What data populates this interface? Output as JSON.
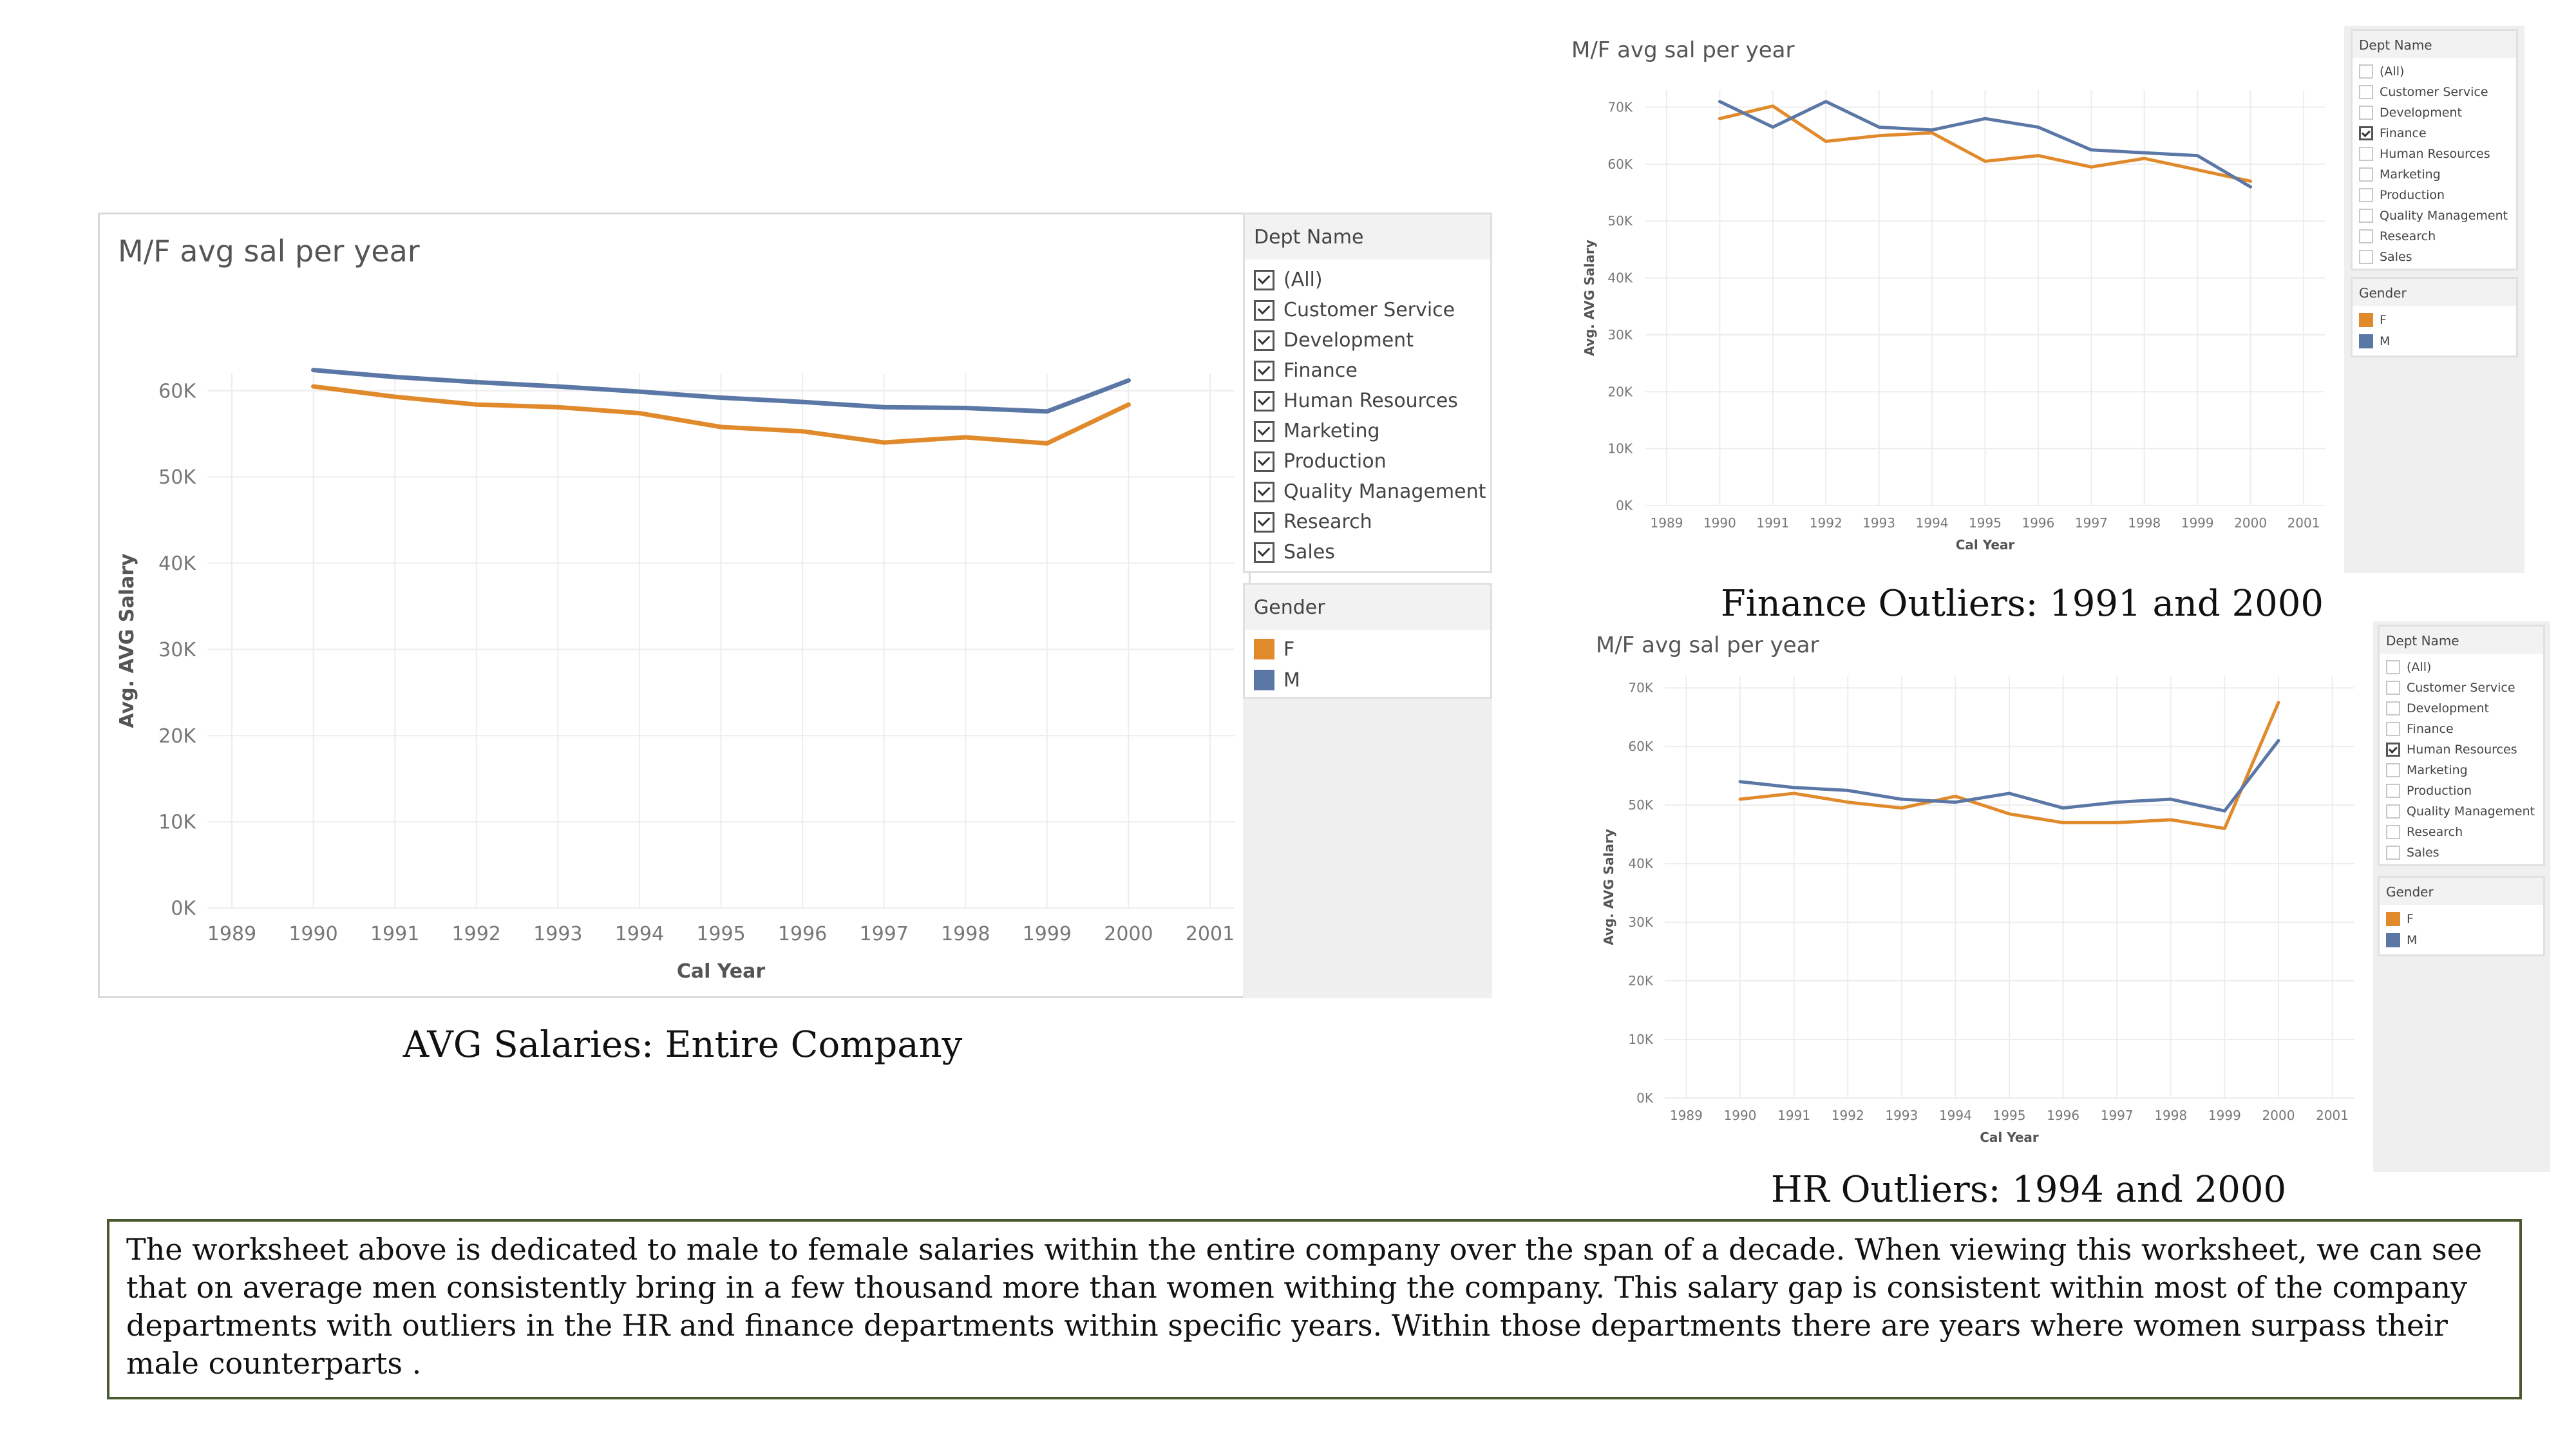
{
  "colors": {
    "female": "#e08a2c",
    "male": "#5b77a6",
    "grid": "#ededed"
  },
  "filter_labels": {
    "dept_header": "Dept Name",
    "gender_header": "Gender",
    "departments": [
      "(All)",
      "Customer Service",
      "Development",
      "Finance",
      "Human Resources",
      "Marketing",
      "Production",
      "Quality Management",
      "Research",
      "Sales"
    ],
    "genders": [
      "F",
      "M"
    ]
  },
  "main_panel": {
    "caption": "AVG Salaries: Entire Company",
    "checked": [
      true,
      true,
      true,
      true,
      true,
      true,
      true,
      true,
      true,
      true
    ]
  },
  "finance_panel": {
    "caption": "Finance Outliers: 1991 and 2000",
    "checked": [
      false,
      false,
      false,
      true,
      false,
      false,
      false,
      false,
      false,
      false
    ]
  },
  "hr_panel": {
    "caption": "HR Outliers: 1994 and 2000",
    "checked": [
      false,
      false,
      false,
      false,
      true,
      false,
      false,
      false,
      false,
      false
    ]
  },
  "description": "The worksheet above is dedicated to male to female salaries within the entire company over the span of a decade. When viewing this worksheet, we can see that on average men consistently bring in a few thousand more than women withing the company. This salary gap is consistent within most of the company departments with outliers in the HR and finance departments within specific years. Within those departments there are years where women surpass their male counterparts .",
  "chart_data": [
    {
      "type": "line",
      "title": "M/F avg sal per year",
      "xlabel": "Cal Year",
      "ylabel": "Avg. AVG Salary",
      "x_ticks": [
        1989,
        1990,
        1991,
        1992,
        1993,
        1994,
        1995,
        1996,
        1997,
        1998,
        1999,
        2000,
        2001
      ],
      "y_ticks": [
        "0K",
        "10K",
        "20K",
        "30K",
        "40K",
        "50K",
        "60K"
      ],
      "xlim": [
        1988.7,
        2001.3
      ],
      "ylim": [
        0,
        62000
      ],
      "legend_title": "Gender",
      "x": [
        1990,
        1991,
        1992,
        1993,
        1994,
        1995,
        1996,
        1997,
        1998,
        1999,
        2000
      ],
      "series": [
        {
          "name": "F",
          "values": [
            60500,
            59300,
            58400,
            58100,
            57400,
            55800,
            55300,
            54000,
            54600,
            53900,
            58400
          ]
        },
        {
          "name": "M",
          "values": [
            62400,
            61600,
            61000,
            60500,
            59900,
            59200,
            58700,
            58100,
            58000,
            57600,
            61200
          ]
        }
      ]
    },
    {
      "type": "line",
      "title": "M/F avg sal per year",
      "xlabel": "Cal Year",
      "ylabel": "Avg. AVG Salary",
      "x_ticks": [
        1989,
        1990,
        1991,
        1992,
        1993,
        1994,
        1995,
        1996,
        1997,
        1998,
        1999,
        2000,
        2001
      ],
      "y_ticks": [
        "0K",
        "10K",
        "20K",
        "30K",
        "40K",
        "50K",
        "60K",
        "70K"
      ],
      "xlim": [
        1988.6,
        2001.4
      ],
      "ylim": [
        0,
        73000
      ],
      "legend_title": "Gender",
      "x": [
        1990,
        1991,
        1992,
        1993,
        1994,
        1995,
        1996,
        1997,
        1998,
        1999,
        2000
      ],
      "series": [
        {
          "name": "F",
          "values": [
            68000,
            70200,
            64000,
            65000,
            65500,
            60500,
            61500,
            59500,
            61000,
            59000,
            57000
          ]
        },
        {
          "name": "M",
          "values": [
            71000,
            66500,
            71000,
            66500,
            66000,
            68000,
            66500,
            62500,
            62000,
            61500,
            56000
          ]
        }
      ]
    },
    {
      "type": "line",
      "title": "M/F avg sal per year",
      "xlabel": "Cal Year",
      "ylabel": "Avg. AVG Salary",
      "x_ticks": [
        1989,
        1990,
        1991,
        1992,
        1993,
        1994,
        1995,
        1996,
        1997,
        1998,
        1999,
        2000,
        2001
      ],
      "y_ticks": [
        "0K",
        "10K",
        "20K",
        "30K",
        "40K",
        "50K",
        "60K",
        "70K"
      ],
      "xlim": [
        1988.6,
        2001.4
      ],
      "ylim": [
        0,
        72000
      ],
      "legend_title": "Gender",
      "x": [
        1990,
        1991,
        1992,
        1993,
        1994,
        1995,
        1996,
        1997,
        1998,
        1999,
        2000
      ],
      "series": [
        {
          "name": "F",
          "values": [
            51000,
            52000,
            50500,
            49500,
            51500,
            48500,
            47000,
            47000,
            47500,
            46000,
            67500
          ]
        },
        {
          "name": "M",
          "values": [
            54000,
            53000,
            52500,
            51000,
            50500,
            52000,
            49500,
            50500,
            51000,
            49000,
            61000
          ]
        }
      ]
    }
  ]
}
